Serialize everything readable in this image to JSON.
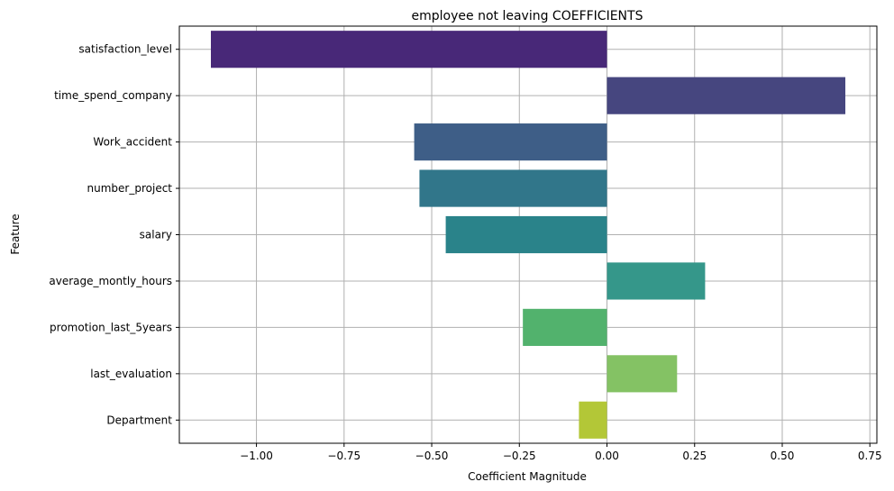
{
  "chart_data": {
    "type": "bar",
    "orientation": "horizontal",
    "title": "employee not leaving COEFFICIENTS",
    "xlabel": "Coefficient Magnitude",
    "ylabel": "Feature",
    "categories": [
      "satisfaction_level",
      "time_spend_company",
      "Work_accident",
      "number_project",
      "salary",
      "average_montly_hours",
      "promotion_last_5years",
      "last_evaluation",
      "Department"
    ],
    "values": [
      -1.13,
      0.68,
      -0.55,
      -0.535,
      -0.46,
      0.28,
      -0.24,
      0.2,
      -0.08
    ],
    "colors": [
      "#482878",
      "#46467f",
      "#3e5e87",
      "#31768a",
      "#2a838a",
      "#35978a",
      "#52b26d",
      "#84c264",
      "#b3c737"
    ],
    "xlim": [
      -1.22,
      0.77
    ],
    "xticks": [
      -1.0,
      -0.75,
      -0.5,
      -0.25,
      0.0,
      0.25,
      0.5,
      0.75
    ],
    "xtick_labels": [
      "−1.00",
      "−0.75",
      "−0.50",
      "−0.25",
      "0.00",
      "0.25",
      "0.50",
      "0.75"
    ],
    "grid": true,
    "legend": "none"
  }
}
